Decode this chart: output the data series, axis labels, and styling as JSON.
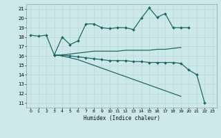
{
  "xlabel": "Humidex (Indice chaleur)",
  "xlim": [
    -0.5,
    23.5
  ],
  "ylim": [
    10.5,
    21.5
  ],
  "yticks": [
    11,
    12,
    13,
    14,
    15,
    16,
    17,
    18,
    19,
    20,
    21
  ],
  "xticks": [
    0,
    1,
    2,
    3,
    4,
    5,
    6,
    7,
    8,
    9,
    10,
    11,
    12,
    13,
    14,
    15,
    16,
    17,
    18,
    19,
    20,
    21,
    22,
    23
  ],
  "bg_color": "#cce8e8",
  "line_color": "#1a6868",
  "grid_color": "#b8d8d8",
  "lines": [
    {
      "x": [
        0,
        1,
        2,
        3,
        4,
        5,
        6,
        7,
        8,
        9,
        10,
        11,
        12,
        13,
        14,
        15,
        16,
        17,
        18,
        19,
        20
      ],
      "y": [
        18.2,
        18.1,
        18.2,
        16.1,
        18.0,
        17.2,
        17.6,
        19.4,
        19.4,
        19.0,
        18.9,
        19.0,
        19.0,
        18.8,
        20.0,
        21.1,
        20.1,
        20.5,
        19.0,
        19.0,
        19.0
      ],
      "marker": "D",
      "ms": 2.0,
      "lw": 0.9
    },
    {
      "x": [
        3,
        4,
        5,
        6,
        7,
        8,
        9,
        10,
        11,
        12,
        13,
        14,
        15,
        16,
        17,
        18,
        19
      ],
      "y": [
        16.1,
        16.1,
        16.2,
        16.3,
        16.4,
        16.5,
        16.5,
        16.5,
        16.5,
        16.6,
        16.6,
        16.6,
        16.6,
        16.7,
        16.7,
        16.8,
        16.9
      ],
      "marker": null,
      "ms": 0,
      "lw": 0.9
    },
    {
      "x": [
        3,
        4,
        5,
        6,
        7,
        8,
        9,
        10,
        11,
        12,
        13,
        14,
        15,
        16,
        17,
        18,
        19,
        20,
        21,
        22
      ],
      "y": [
        16.1,
        16.1,
        16.0,
        15.9,
        15.8,
        15.7,
        15.6,
        15.5,
        15.5,
        15.5,
        15.4,
        15.4,
        15.3,
        15.3,
        15.3,
        15.3,
        15.2,
        14.5,
        14.0,
        11.0
      ],
      "marker": "D",
      "ms": 2.0,
      "lw": 0.9
    },
    {
      "x": [
        3,
        4,
        5,
        6,
        7,
        8,
        9,
        10,
        11,
        12,
        13,
        14,
        15,
        16,
        17,
        18,
        19
      ],
      "y": [
        16.1,
        16.0,
        15.8,
        15.6,
        15.3,
        15.0,
        14.7,
        14.4,
        14.1,
        13.8,
        13.5,
        13.2,
        12.9,
        12.6,
        12.3,
        12.0,
        11.7
      ],
      "marker": null,
      "ms": 0,
      "lw": 0.9
    }
  ]
}
